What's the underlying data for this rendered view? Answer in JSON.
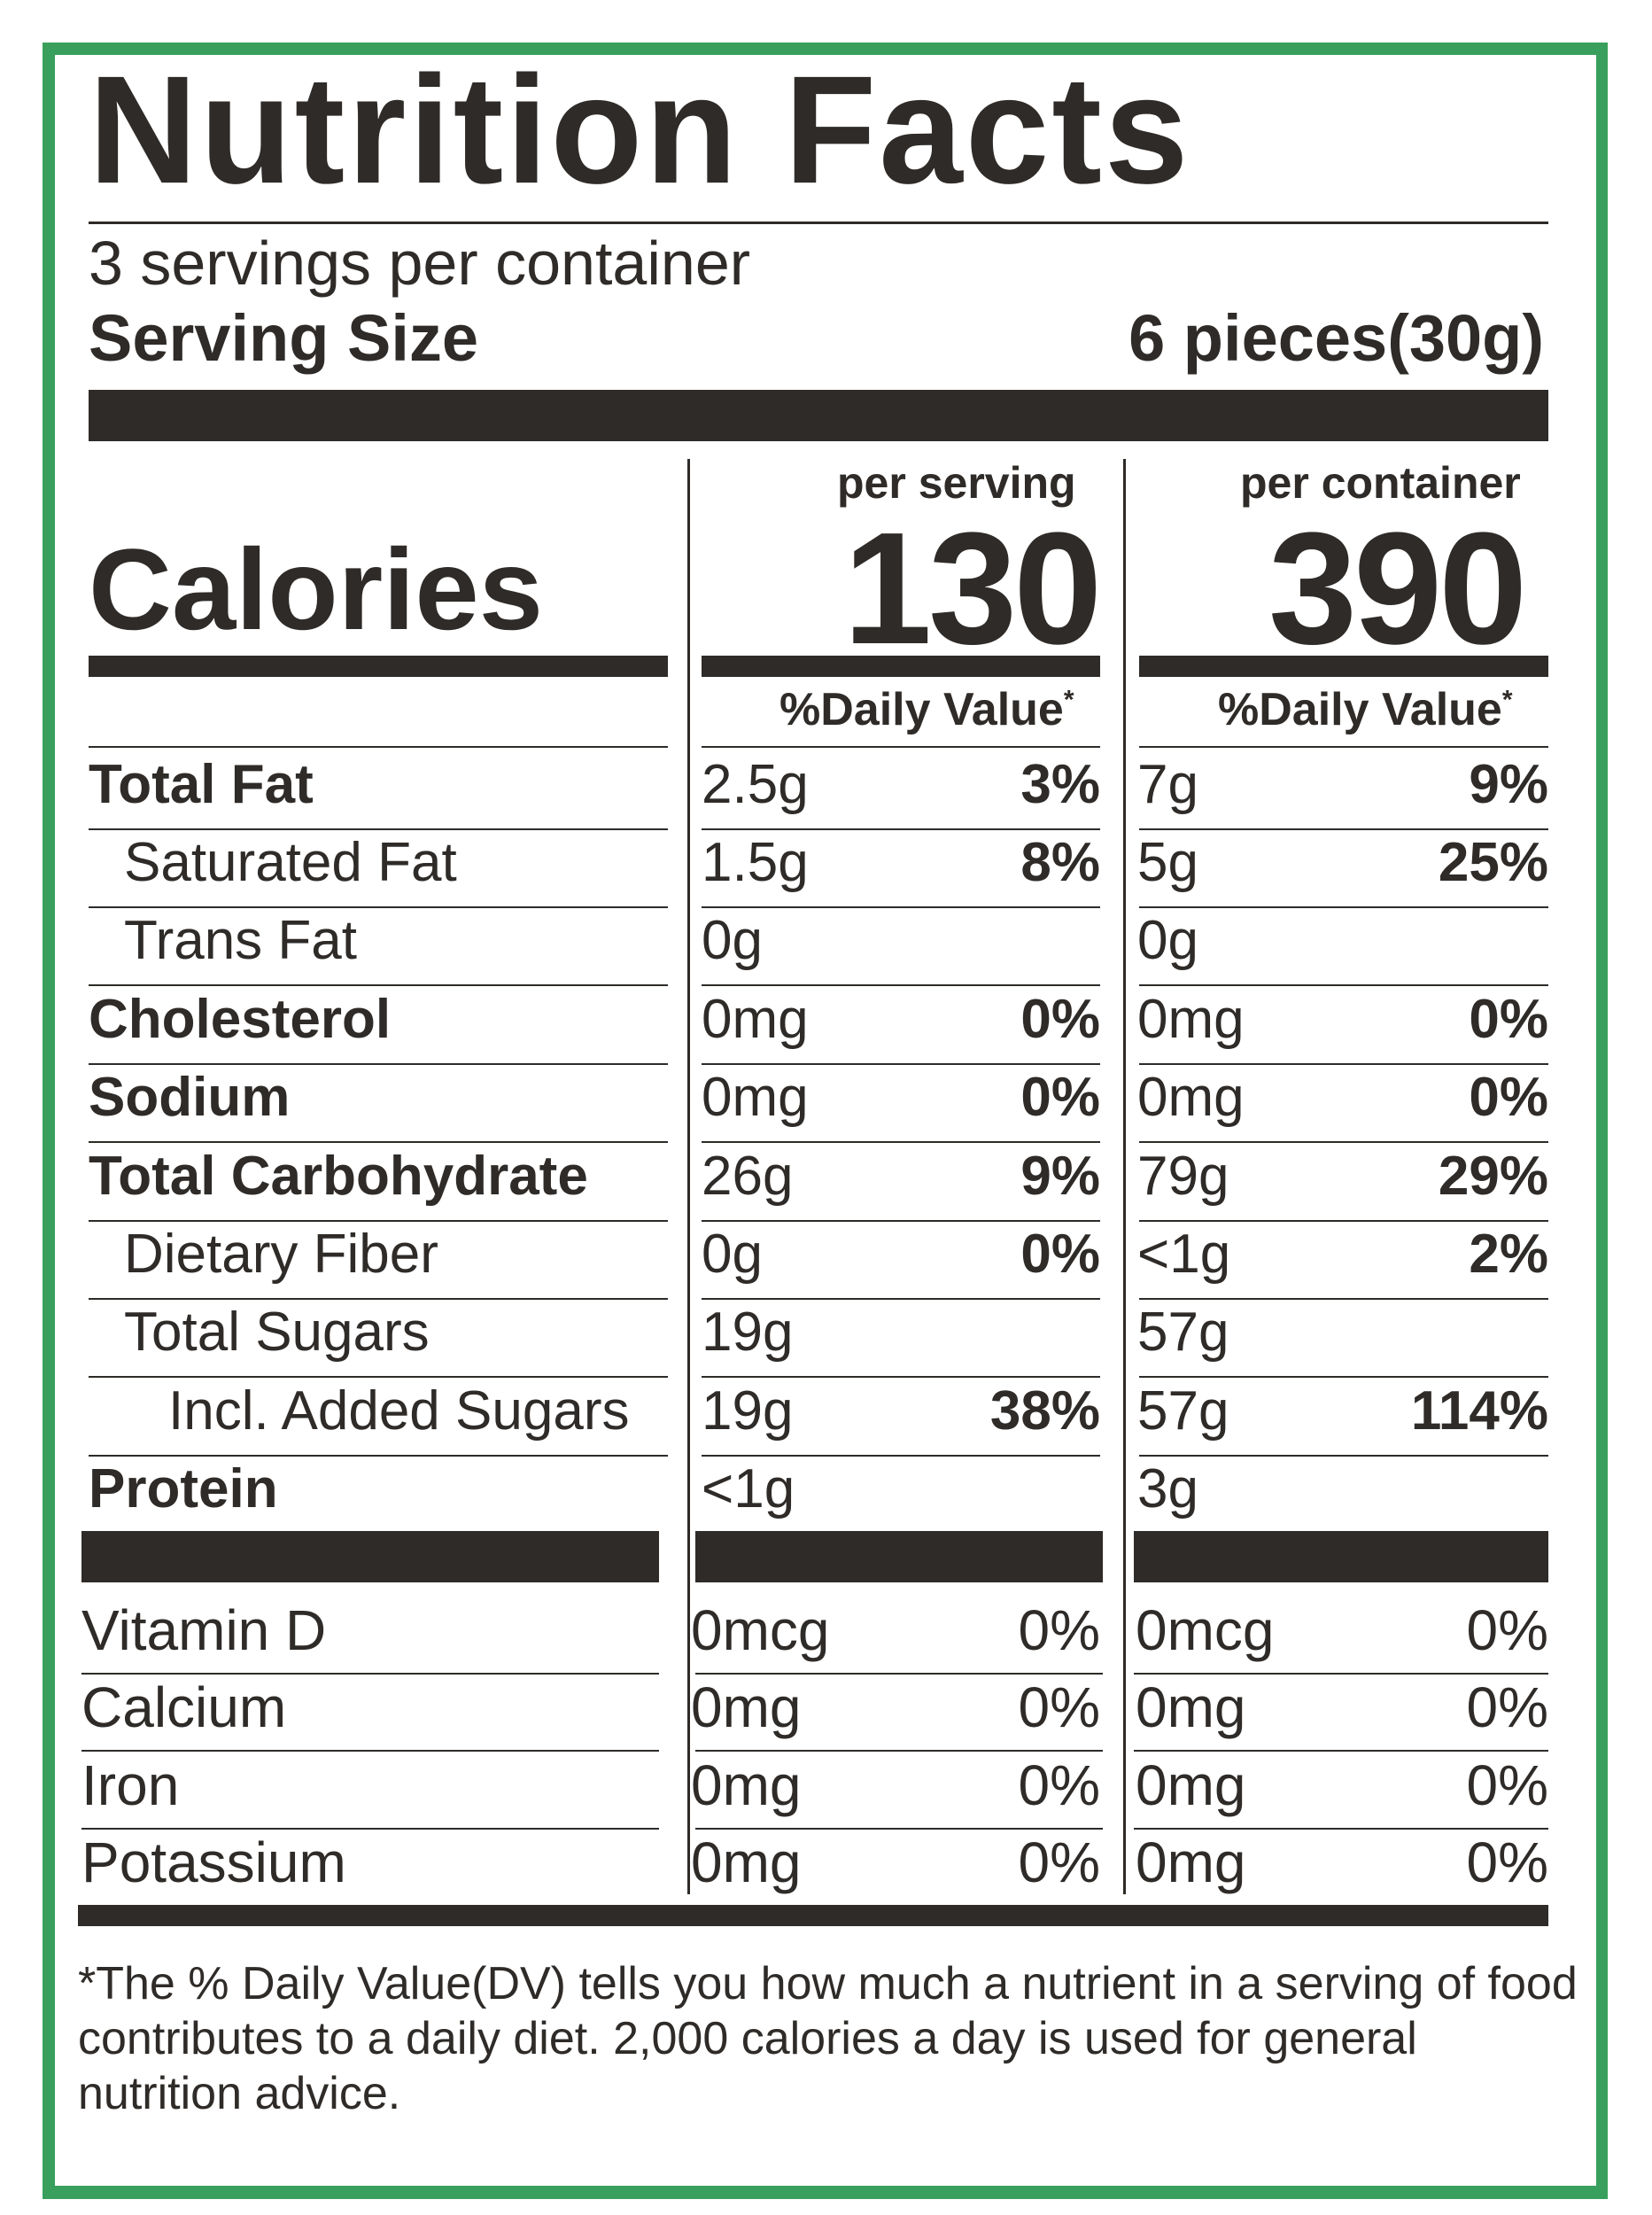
{
  "label": {
    "title": "Nutrition Facts",
    "servings_per_container": "3 servings per container",
    "serving_size_label": "Serving Size",
    "serving_size_value": "6 pieces(30g)",
    "calories_label": "Calories",
    "per_serving_header": "per serving",
    "per_container_header": "per container",
    "calories_per_serving": "130",
    "calories_per_container": "390",
    "dv_header": "%Daily Value",
    "dv_asterisk": "*"
  },
  "nutrients": [
    {
      "name": "Total Fat",
      "serv_amt": "2.5g",
      "serv_dv": "3%",
      "cont_amt": "7g",
      "cont_dv": "9%"
    },
    {
      "name": "Saturated Fat",
      "serv_amt": "1.5g",
      "serv_dv": "8%",
      "cont_amt": "5g",
      "cont_dv": "25%"
    },
    {
      "name": "Trans Fat",
      "serv_amt": "0g",
      "serv_dv": "",
      "cont_amt": "0g",
      "cont_dv": ""
    },
    {
      "name": "Cholesterol",
      "serv_amt": "0mg",
      "serv_dv": "0%",
      "cont_amt": "0mg",
      "cont_dv": "0%"
    },
    {
      "name": "Sodium",
      "serv_amt": "0mg",
      "serv_dv": "0%",
      "cont_amt": "0mg",
      "cont_dv": "0%"
    },
    {
      "name": "Total Carbohydrate",
      "serv_amt": "26g",
      "serv_dv": "9%",
      "cont_amt": "79g",
      "cont_dv": "29%"
    },
    {
      "name": "Dietary Fiber",
      "serv_amt": "0g",
      "serv_dv": "0%",
      "cont_amt": "<1g",
      "cont_dv": "2%"
    },
    {
      "name": "Total Sugars",
      "serv_amt": "19g",
      "serv_dv": "",
      "cont_amt": "57g",
      "cont_dv": ""
    },
    {
      "name": "Incl. Added Sugars",
      "serv_amt": "19g",
      "serv_dv": "38%",
      "cont_amt": "57g",
      "cont_dv": "114%"
    },
    {
      "name": "Protein",
      "serv_amt": "<1g",
      "serv_dv": "",
      "cont_amt": "3g",
      "cont_dv": ""
    }
  ],
  "vitamins": [
    {
      "name": "Vitamin D",
      "serv_amt": "0mcg",
      "serv_dv": "0%",
      "cont_amt": "0mcg",
      "cont_dv": "0%"
    },
    {
      "name": "Calcium",
      "serv_amt": "0mg",
      "serv_dv": "0%",
      "cont_amt": "0mg",
      "cont_dv": "0%"
    },
    {
      "name": "Iron",
      "serv_amt": "0mg",
      "serv_dv": "0%",
      "cont_amt": "0mg",
      "cont_dv": "0%"
    },
    {
      "name": "Potassium",
      "serv_amt": "0mg",
      "serv_dv": "0%",
      "cont_amt": "0mg",
      "cont_dv": "0%"
    }
  ],
  "footnote": "*The % Daily Value(DV) tells you how much a nutrient in a serving of food contributes to a daily diet. 2,000 calories a day is used for general nutrition advice.",
  "colors": {
    "border": "#38a05c",
    "ink": "#2e2b28",
    "background": "#ffffff"
  }
}
